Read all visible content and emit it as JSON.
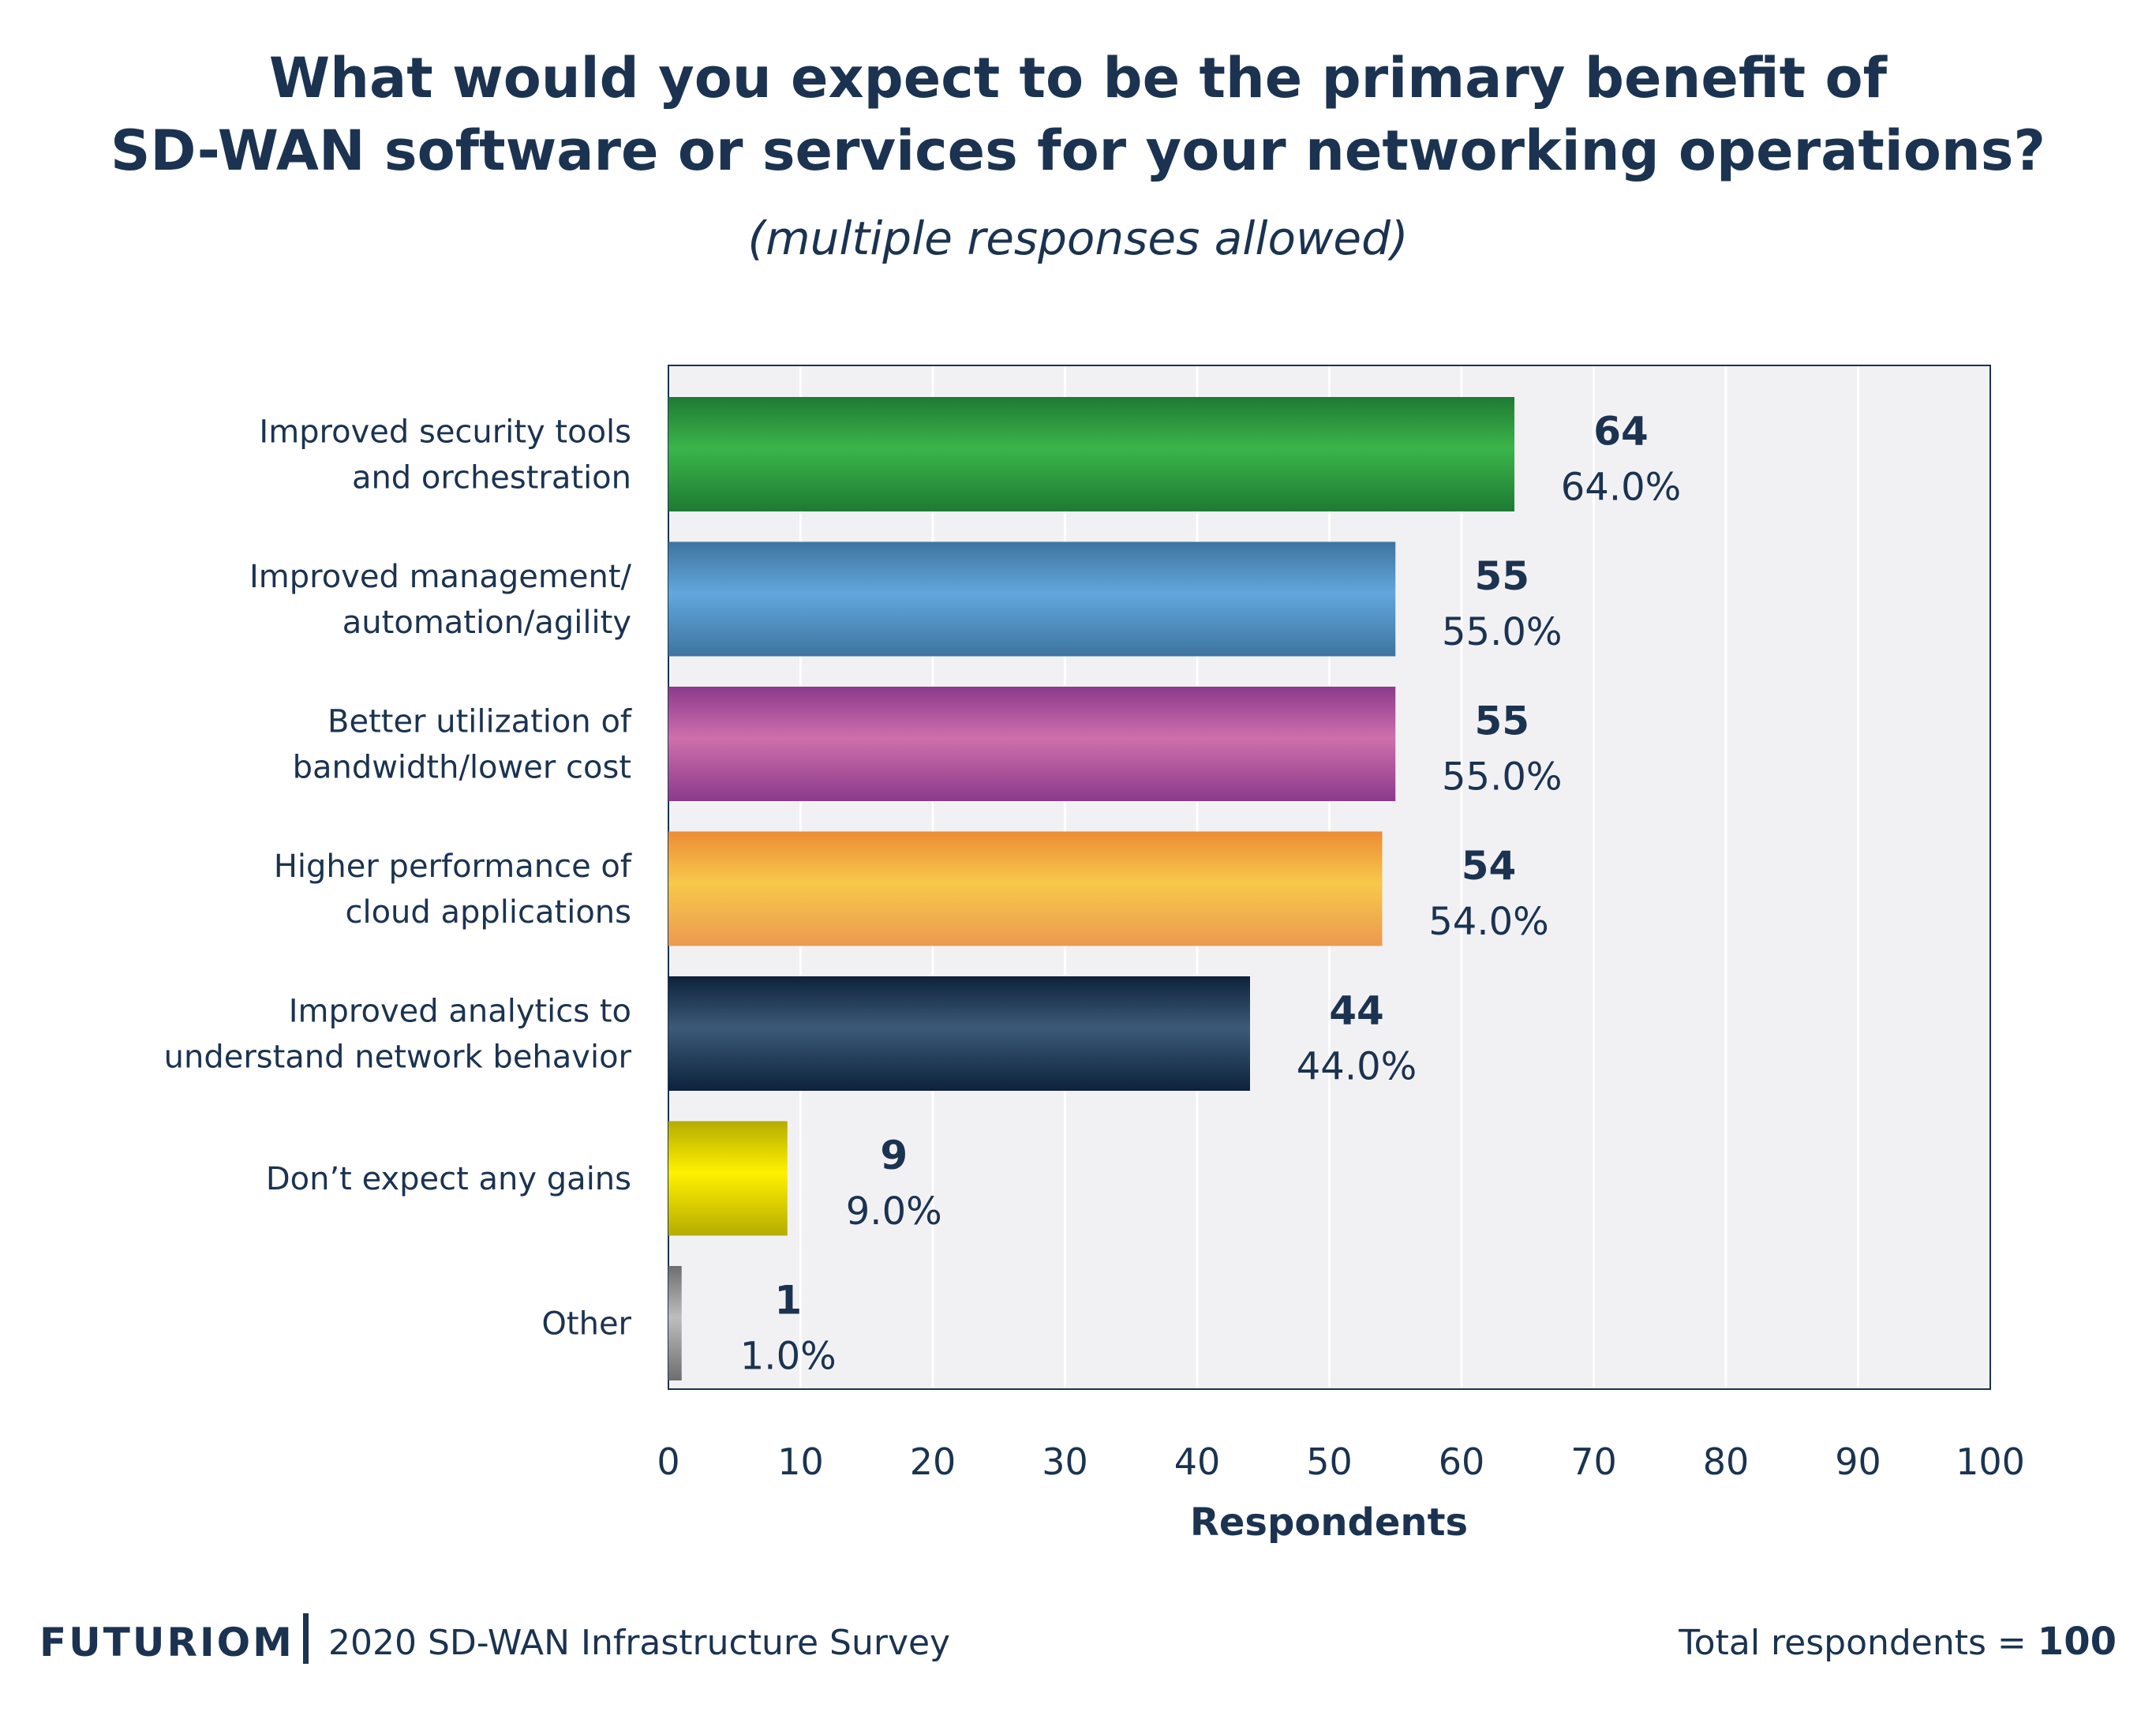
{
  "title_line1": "What would you expect to be the primary benefit of",
  "title_line2": "SD-WAN software or services for your networking operations?",
  "subtitle": "(multiple responses allowed)",
  "footer": {
    "brand": "FUTURIOM",
    "survey": "2020 SD-WAN Infrastructure Survey",
    "total_label": "Total respondents =",
    "total_value": "100"
  },
  "chart_data": {
    "type": "bar",
    "orientation": "horizontal",
    "categories": [
      [
        "Improved security tools",
        "and orchestration"
      ],
      [
        "Improved management/",
        "automation/agility"
      ],
      [
        "Better utilization of",
        "bandwidth/lower cost"
      ],
      [
        "Higher performance of",
        "cloud applications"
      ],
      [
        "Improved analytics to",
        "understand network behavior"
      ],
      [
        "Don’t expect any gains"
      ],
      [
        "Other"
      ]
    ],
    "values": [
      64,
      55,
      55,
      54,
      44,
      9,
      1
    ],
    "value_labels": [
      "64",
      "55",
      "55",
      "54",
      "44",
      "9",
      "1"
    ],
    "percent_labels": [
      "64.0%",
      "55.0%",
      "55.0%",
      "54.0%",
      "44.0%",
      "9.0%",
      "1.0%"
    ],
    "colors": [
      [
        "#1e7a33",
        "#3bb54a",
        "#1e7a33"
      ],
      [
        "#3d74a0",
        "#62a7dc",
        "#3d74a0"
      ],
      [
        "#8a3a8c",
        "#cf6fac",
        "#8a3a8c"
      ],
      [
        "#ec8c36",
        "#f8c84a",
        "#ec9a50"
      ],
      [
        "#0d223b",
        "#3c5a77",
        "#0d223b"
      ],
      [
        "#b5ac00",
        "#fff100",
        "#b5ac00"
      ],
      [
        "#6e6e6e",
        "#bdbdbd",
        "#6e6e6e"
      ]
    ],
    "xlabel": "Respondents",
    "xlim": [
      0,
      100
    ],
    "xticks": [
      0,
      10,
      20,
      30,
      40,
      50,
      60,
      70,
      80,
      90,
      100
    ],
    "grid": true
  }
}
